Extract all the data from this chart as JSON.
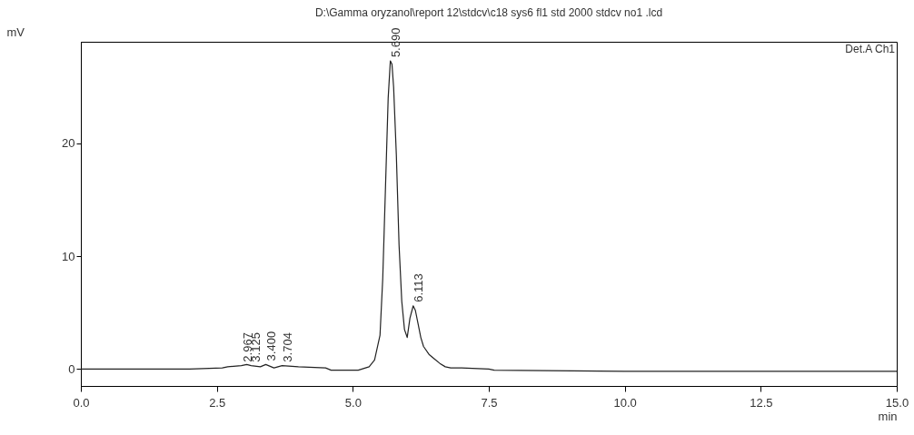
{
  "chart_data": {
    "type": "line",
    "title": "D:\\Gamma oryzanol\\report 12\\stdcv\\c18 sys6 fl1 std 2000 stdcv no1 .lcd",
    "xlabel": "min",
    "ylabel": "mV",
    "color": "#222222",
    "x": [
      0,
      1,
      2,
      2.6,
      2.7,
      2.95,
      3.05,
      3.13,
      3.3,
      3.4,
      3.55,
      3.7,
      4,
      4.5,
      4.6,
      5.1,
      5.3,
      5.4,
      5.5,
      5.55,
      5.6,
      5.65,
      5.69,
      5.72,
      5.75,
      5.8,
      5.85,
      5.9,
      5.95,
      6,
      6.05,
      6.11,
      6.15,
      6.2,
      6.25,
      6.3,
      6.4,
      6.5,
      6.6,
      6.7,
      6.8,
      7,
      7.5,
      7.6,
      10,
      12.5,
      15
    ],
    "values": [
      0,
      0,
      0,
      0.1,
      0.2,
      0.3,
      0.4,
      0.3,
      0.2,
      0.4,
      0.1,
      0.3,
      0.2,
      0.1,
      -0.1,
      -0.1,
      0.2,
      0.8,
      3,
      8,
      16,
      24,
      27.3,
      27,
      25,
      19,
      11,
      6,
      3.5,
      2.8,
      4.5,
      5.6,
      5.2,
      4,
      2.8,
      2,
      1.3,
      0.9,
      0.5,
      0.2,
      0.1,
      0.1,
      0,
      -0.1,
      -0.2,
      -0.2,
      -0.2
    ],
    "xlim": [
      0,
      15
    ],
    "xticks": [
      {
        "value": 0,
        "label": "0.0"
      },
      {
        "value": 2.5,
        "label": "2.5"
      },
      {
        "value": 5,
        "label": "5.0"
      },
      {
        "value": 7.5,
        "label": "7.5"
      },
      {
        "value": 10,
        "label": "10.0"
      },
      {
        "value": 12.5,
        "label": "12.5"
      },
      {
        "value": 15,
        "label": "15.0"
      }
    ],
    "ylim": [
      -1.5,
      29
    ],
    "yticks": [
      0,
      10,
      20
    ],
    "annotations": [
      "Det.A Ch1",
      {
        "text": "2.967",
        "x": 2.967,
        "y": 0.3
      },
      {
        "text": "3.125",
        "x": 3.125,
        "y": 0.3
      },
      {
        "text": "3.400",
        "x": 3.4,
        "y": 0.4
      },
      {
        "text": "3.704",
        "x": 3.704,
        "y": 0.3
      },
      {
        "text": "5.690",
        "x": 5.69,
        "y": 27.3
      },
      {
        "text": "6.113",
        "x": 6.113,
        "y": 5.6
      }
    ]
  }
}
